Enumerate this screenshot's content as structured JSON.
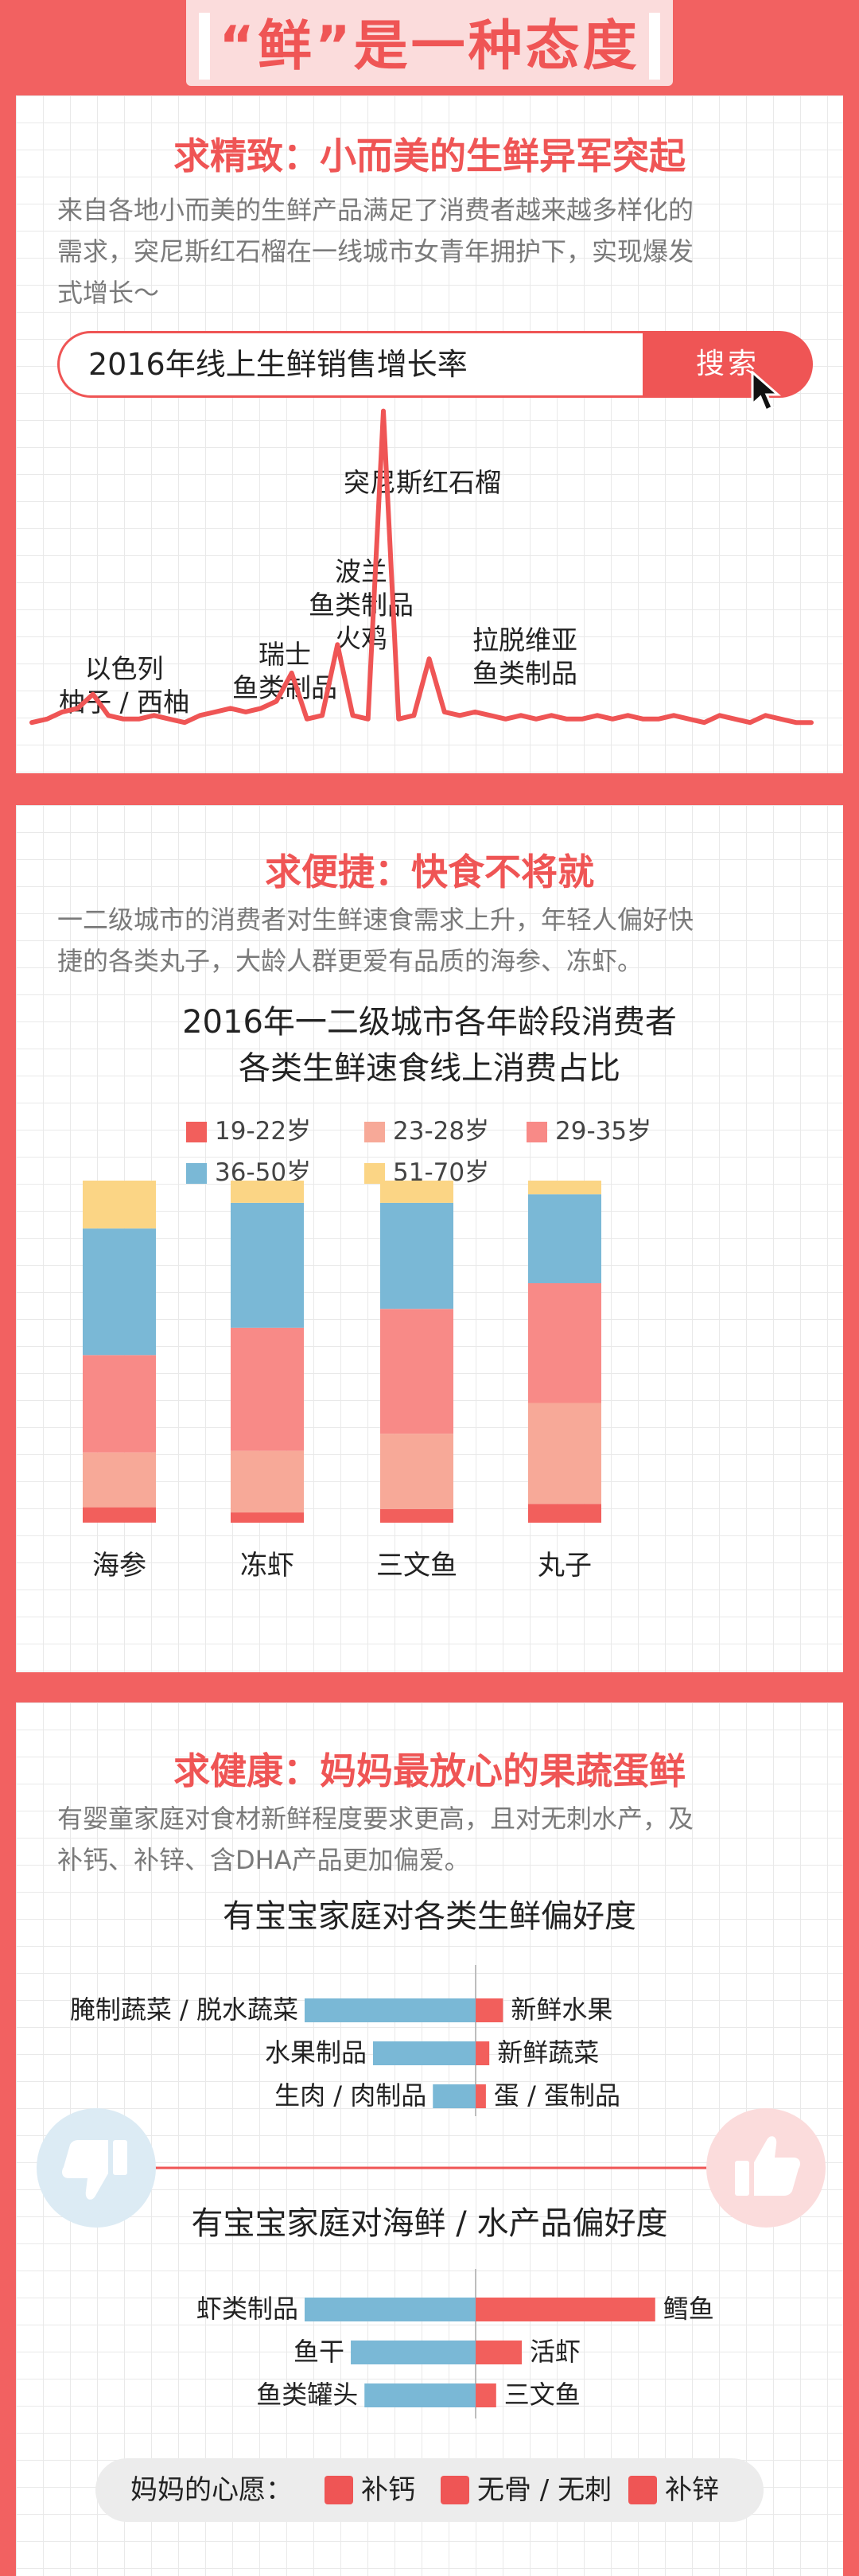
{
  "header": {
    "title": "“鲜”是一种态度"
  },
  "section1": {
    "title": "求精致：小而美的生鲜异军突起",
    "desc": [
      "来自各地小而美的生鲜产品满足了消费者越来越多样化的",
      "需求，突尼斯红石榴在一线城市女青年拥护下，实现爆发",
      "式增长～"
    ],
    "search_query": "2016年线上生鲜销售增长率",
    "search_button": "搜索",
    "peaks": [
      [
        "以色列",
        "柚子 / 西柚"
      ],
      [
        "瑞士",
        "鱼类制品"
      ],
      [
        "波兰",
        "鱼类制品",
        "火鸡"
      ],
      [
        "突尼斯红石榴"
      ],
      [
        "拉脱维亚",
        "鱼类制品"
      ]
    ]
  },
  "section2": {
    "title": "求便捷：快食不将就",
    "desc": [
      "一二级城市的消费者对生鲜速食需求上升，年轻人偏好快",
      "捷的各类丸子，大龄人群更爱有品质的海参、冻虾。"
    ],
    "chart_title": [
      "2016年一二级城市各年龄段消费者",
      "各类生鲜速食线上消费占比"
    ]
  },
  "section3": {
    "title": "求健康：妈妈最放心的果蔬蛋鲜",
    "desc": [
      "有婴童家庭对食材新鲜程度要求更高，且对无刺水产，及",
      "补钙、补锌、含DHA产品更加偏爱。"
    ],
    "chart1_title": "有宝宝家庭对各类生鲜偏好度",
    "chart2_title": "有宝宝家庭对海鲜 / 水产品偏好度",
    "dislike_icon": "thumbs-down-icon",
    "like_icon": "thumbs-up-icon",
    "wish_label": "妈妈的心愿：",
    "wishes": [
      "补钙",
      "无骨 / 无刺",
      "补锌"
    ]
  },
  "colors": {
    "accent": "#ef5555",
    "age_19_22": "#f25f5c",
    "age_23_28": "#f7a998",
    "age_29_35": "#f88a87",
    "age_36_50": "#7ab8d6",
    "age_51_70": "#fbd585",
    "dislike_bar": "#7ab8d6",
    "like_bar": "#f25f5c"
  },
  "chart_data": [
    {
      "type": "line",
      "title": "2016年线上生鲜销售增长率",
      "x": [
        1,
        2,
        3,
        4,
        5,
        6,
        7,
        8,
        9,
        10,
        11,
        12,
        13,
        14,
        15,
        16,
        17,
        18,
        19,
        20,
        21,
        22,
        23,
        24,
        25,
        26,
        27,
        28,
        29,
        30,
        31,
        32,
        33,
        34,
        35,
        36,
        37,
        38,
        39,
        40,
        41,
        42,
        43,
        44,
        45,
        46,
        47,
        48,
        49,
        50,
        51,
        52
      ],
      "y": [
        2,
        2.5,
        3.5,
        4,
        6,
        3,
        2.5,
        2.5,
        3,
        2.5,
        2,
        3,
        3.5,
        4,
        3.5,
        4,
        5,
        9,
        2.5,
        3,
        13,
        3,
        2.5,
        46,
        2.5,
        3,
        11,
        3.5,
        3,
        3.5,
        3,
        2.5,
        3,
        2.5,
        3,
        2.5,
        2.5,
        3,
        2.5,
        3,
        2.5,
        2.5,
        3,
        2.5,
        2,
        3,
        2.5,
        2,
        3,
        2.5,
        2,
        2
      ],
      "annotations": [
        "以色列 柚子 / 西柚",
        "瑞士 鱼类制品",
        "波兰 鱼类制品 火鸡",
        "突尼斯红石榴",
        "拉脱维亚 鱼类制品"
      ]
    },
    {
      "type": "bar",
      "stacked": true,
      "title": "2016年一二级城市各年龄段消费者各类生鲜速食线上消费占比",
      "categories": [
        "海参",
        "冻虾",
        "三文鱼",
        "丸子"
      ],
      "series": [
        {
          "name": "19-22岁",
          "values": [
            4.5,
            3,
            4,
            5.5
          ]
        },
        {
          "name": "23-28岁",
          "values": [
            16,
            18,
            22,
            29.5
          ]
        },
        {
          "name": "29-35岁",
          "values": [
            28.5,
            36,
            36.5,
            35
          ]
        },
        {
          "name": "36-50岁",
          "values": [
            37,
            36.5,
            31,
            26
          ]
        },
        {
          "name": "51-70岁",
          "values": [
            14,
            6.5,
            6.5,
            4
          ]
        }
      ],
      "legend": "top"
    },
    {
      "type": "bar",
      "orientation": "horizontal",
      "title": "有宝宝家庭对各类生鲜偏好度",
      "left_categories": [
        "腌制蔬菜 / 脱水蔬菜",
        "水果制品",
        "生肉 / 肉制品"
      ],
      "left_values": [
        -100,
        -60,
        -25
      ],
      "right_categories": [
        "新鲜水果",
        "新鲜蔬菜",
        "蛋 / 蛋制品"
      ],
      "right_values": [
        16,
        8,
        6
      ]
    },
    {
      "type": "bar",
      "orientation": "horizontal",
      "title": "有宝宝家庭对海鲜 / 水产品偏好度",
      "left_categories": [
        "虾类制品",
        "鱼干",
        "鱼类罐头"
      ],
      "left_values": [
        -100,
        -73,
        -65
      ],
      "right_categories": [
        "鳕鱼",
        "活虾",
        "三文鱼"
      ],
      "right_values": [
        105,
        27,
        12
      ]
    }
  ]
}
